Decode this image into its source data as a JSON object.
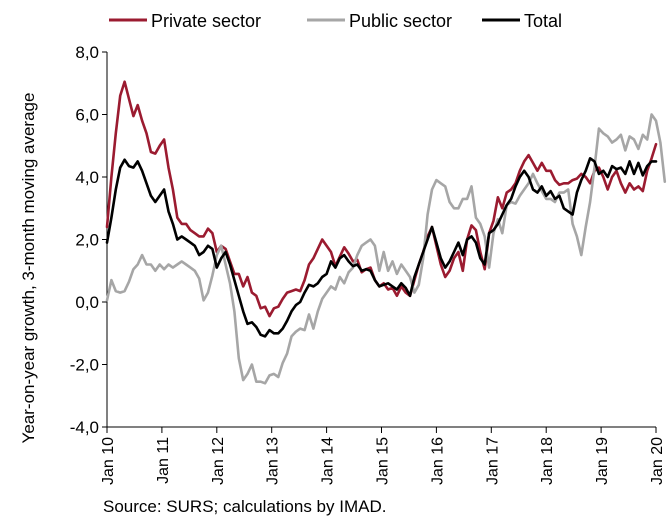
{
  "chart_data": {
    "type": "line",
    "title": "",
    "ylabel": "Year-on-year growth, 3-month moving average",
    "xlabel": "",
    "ylim": [
      -4.0,
      8.0
    ],
    "yticks": [
      "-4,0",
      "-2,0",
      "0,0",
      "2,0",
      "4,0",
      "6,0",
      "8,0"
    ],
    "x_start": "Jan 10",
    "x_end": "Jan 20",
    "x_ticks": [
      "Jan 10",
      "Jan 11",
      "Jan 12",
      "Jan 13",
      "Jan 14",
      "Jan 15",
      "Jan 16",
      "Jan 17",
      "Jan 18",
      "Jan 19",
      "Jan 20"
    ],
    "legend_position": "top",
    "grid": false,
    "series": [
      {
        "name": "Private sector",
        "color": "#9b1b30",
        "values": [
          2.4,
          4.0,
          5.4,
          6.6,
          7.05,
          6.5,
          5.95,
          6.3,
          5.8,
          5.4,
          4.8,
          4.75,
          5.0,
          5.2,
          4.3,
          3.6,
          2.7,
          2.5,
          2.5,
          2.3,
          2.2,
          2.1,
          2.1,
          2.35,
          2.2,
          1.6,
          1.8,
          1.7,
          1.3,
          0.9,
          0.9,
          0.5,
          0.8,
          0.3,
          0.2,
          -0.2,
          -0.15,
          -0.45,
          -0.2,
          -0.15,
          0.1,
          0.3,
          0.35,
          0.4,
          0.35,
          0.7,
          1.2,
          1.4,
          1.7,
          2.0,
          1.8,
          1.6,
          1.15,
          1.45,
          1.75,
          1.55,
          1.3,
          1.35,
          0.95,
          1.05,
          1.1,
          0.7,
          0.5,
          0.6,
          0.4,
          0.45,
          0.2,
          0.5,
          0.3,
          0.2,
          0.7,
          1.2,
          1.6,
          2.1,
          2.4,
          1.8,
          1.2,
          0.8,
          1.0,
          1.4,
          1.6,
          1.0,
          2.0,
          2.45,
          2.3,
          1.6,
          1.05,
          2.2,
          2.6,
          3.35,
          3.0,
          3.5,
          3.6,
          3.8,
          4.2,
          4.5,
          4.7,
          4.45,
          4.2,
          4.45,
          4.2,
          4.2,
          3.9,
          3.75,
          3.8,
          3.8,
          3.9,
          3.95,
          4.1,
          4.0,
          3.8,
          4.2,
          4.3,
          4.0,
          3.6,
          4.0,
          4.2,
          3.8,
          3.5,
          3.8,
          3.6,
          3.7,
          3.55,
          4.2,
          4.6,
          5.05
        ]
      },
      {
        "name": "Public sector",
        "color": "#a6a6a6",
        "values": [
          0.05,
          0.7,
          0.35,
          0.3,
          0.35,
          0.65,
          1.05,
          1.2,
          1.5,
          1.2,
          1.2,
          1.0,
          1.2,
          1.05,
          1.2,
          1.1,
          1.2,
          1.3,
          1.2,
          1.1,
          1.0,
          0.75,
          0.05,
          0.3,
          0.85,
          1.5,
          1.8,
          1.2,
          0.6,
          -0.3,
          -1.8,
          -2.5,
          -2.3,
          -2.0,
          -2.55,
          -2.55,
          -2.6,
          -2.35,
          -2.3,
          -2.4,
          -1.95,
          -1.65,
          -1.1,
          -0.95,
          -0.85,
          -0.9,
          -0.4,
          -0.85,
          -0.3,
          0.1,
          0.3,
          0.5,
          0.4,
          0.8,
          0.6,
          0.95,
          1.1,
          1.5,
          1.8,
          1.9,
          2.0,
          1.8,
          1.0,
          1.6,
          1.0,
          1.3,
          0.9,
          1.2,
          1.0,
          0.8,
          0.3,
          0.55,
          1.4,
          2.8,
          3.6,
          3.9,
          3.8,
          3.7,
          3.2,
          3.0,
          3.0,
          3.3,
          3.3,
          3.7,
          2.7,
          2.5,
          2.1,
          1.1,
          2.2,
          2.65,
          2.2,
          3.1,
          3.2,
          3.15,
          3.4,
          3.6,
          3.8,
          4.1,
          3.8,
          3.55,
          3.3,
          3.3,
          3.2,
          3.5,
          3.5,
          3.6,
          2.5,
          2.1,
          1.5,
          2.4,
          3.2,
          4.3,
          5.55,
          5.4,
          5.3,
          5.1,
          5.2,
          5.35,
          4.85,
          5.3,
          5.2,
          4.9,
          5.35,
          5.2,
          6.0,
          5.8,
          5.1,
          3.85
        ]
      },
      {
        "name": "Total",
        "color": "#000000",
        "values": [
          1.9,
          2.7,
          3.6,
          4.3,
          4.55,
          4.35,
          4.3,
          4.5,
          4.2,
          3.8,
          3.4,
          3.2,
          3.4,
          3.6,
          2.9,
          2.5,
          2.0,
          2.1,
          2.0,
          1.9,
          1.8,
          1.5,
          1.6,
          1.8,
          1.7,
          1.1,
          1.4,
          1.6,
          1.2,
          0.7,
          0.2,
          -0.3,
          -0.7,
          -0.65,
          -0.8,
          -1.05,
          -1.1,
          -0.9,
          -1.0,
          -1.0,
          -0.85,
          -0.6,
          -0.3,
          -0.1,
          0.0,
          0.3,
          0.55,
          0.5,
          0.6,
          0.8,
          0.9,
          1.3,
          1.1,
          1.4,
          1.5,
          1.3,
          1.15,
          1.2,
          1.0,
          1.05,
          1.0,
          0.7,
          0.5,
          0.55,
          0.6,
          0.5,
          0.4,
          0.6,
          0.45,
          0.2,
          0.8,
          1.2,
          1.6,
          2.0,
          2.4,
          1.9,
          1.4,
          1.1,
          1.3,
          1.6,
          1.9,
          1.5,
          2.0,
          2.1,
          1.9,
          1.4,
          1.2,
          2.2,
          2.3,
          2.5,
          2.8,
          3.1,
          3.3,
          3.7,
          4.0,
          4.2,
          4.0,
          3.6,
          3.5,
          3.7,
          3.4,
          3.55,
          3.3,
          3.4,
          3.0,
          2.9,
          2.8,
          3.5,
          3.9,
          4.2,
          4.6,
          4.5,
          4.1,
          4.2,
          4.0,
          4.35,
          4.25,
          4.3,
          4.1,
          4.5,
          4.1,
          4.45,
          4.05,
          4.35,
          4.5,
          4.5
        ]
      }
    ],
    "source": "Source: SURS; calculations by IMAD."
  }
}
